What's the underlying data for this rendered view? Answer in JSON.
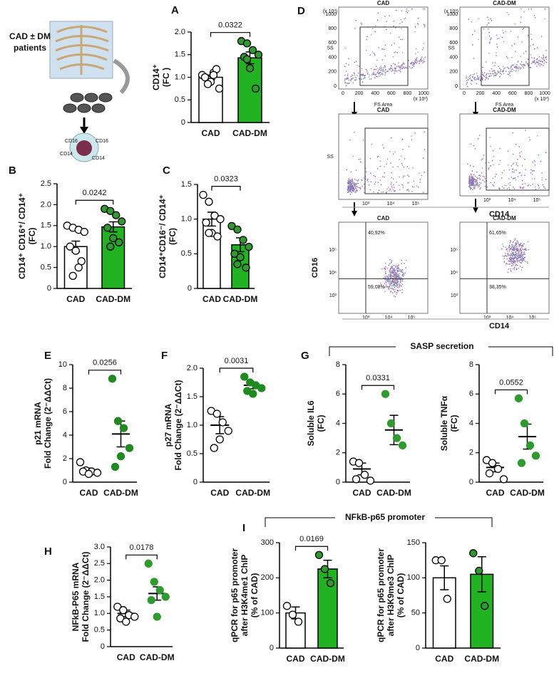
{
  "figure": {
    "cartoon": {
      "title": [
        "CAD ± DM",
        "patients"
      ],
      "markers": [
        "CD16",
        "CD16",
        "CD14",
        "CD14"
      ]
    },
    "flow": {
      "panel": "D",
      "titles": [
        "CAD",
        "CAD-DM",
        "CAD",
        "CAD-DM",
        "CAD",
        "CAD-DM"
      ],
      "ss_label": "SS",
      "fs_label": "FS Area",
      "unit": "(x 10³)",
      "lin_ticks": [
        "0",
        "200",
        "400",
        "600",
        "800",
        "1000"
      ],
      "log_ticks": [
        "10³",
        "10⁴",
        "10⁵"
      ],
      "cd14_label": "CD14",
      "cd16_label": "CD16",
      "percent": [
        "40,92%",
        "59,08%",
        "61,65%",
        "38,35%"
      ]
    },
    "headers": [
      "SASP secretion",
      "NFkB-p65 promoter"
    ]
  },
  "chart_data": [
    {
      "type": "bar",
      "panel": "A",
      "y_label": [
        "CD14⁺",
        "(FC )"
      ],
      "categories": [
        "CAD",
        "CAD-DM"
      ],
      "values": [
        1.0,
        1.43
      ],
      "errors": [
        0.05,
        0.13
      ],
      "points": [
        [
          1.05,
          0.95,
          1.1,
          0.75,
          1.0,
          0.9,
          1.18,
          0.85,
          1.05
        ],
        [
          1.8,
          1.75,
          1.6,
          1.5,
          1.45,
          1.2,
          0.75,
          1.4
        ]
      ],
      "colors": [
        "#ffffff",
        "#22b322"
      ],
      "point_colors": [
        "#ffffff",
        "#2e9b2e"
      ],
      "annotation": "0.0322",
      "ylim": [
        0,
        2
      ],
      "yticks": [
        0,
        0.5,
        {
          "value": 1,
          "label": "1.0"
        },
        1.5,
        {
          "value": 2,
          "label": "2.0"
        }
      ]
    },
    {
      "type": "bar",
      "panel": "B",
      "y_label": [
        "CD14⁺ CD16⁺/ CD14⁺",
        "(FC)"
      ],
      "categories": [
        "CAD",
        "CAD-DM"
      ],
      "values": [
        1.0,
        1.47
      ],
      "errors": [
        0.13,
        0.12
      ],
      "points": [
        [
          1.5,
          1.45,
          1.4,
          1.35,
          1.0,
          0.9,
          0.65,
          0.3,
          0.5
        ],
        [
          1.9,
          1.85,
          1.75,
          1.6,
          1.45,
          1.2,
          1.1,
          1.0
        ]
      ],
      "colors": [
        "#ffffff",
        "#22b322"
      ],
      "point_colors": [
        "#ffffff",
        "#2e9b2e"
      ],
      "annotation": "0.0242",
      "ylim": [
        0,
        2.5
      ],
      "yticks": [
        0,
        0.5,
        {
          "value": 1,
          "label": "1.0"
        },
        1.5,
        {
          "value": 2,
          "label": "2.0"
        },
        2.5
      ]
    },
    {
      "type": "bar",
      "panel": "C",
      "y_label": [
        "CD14⁺CD16⁻/ CD14⁺",
        "(FC)"
      ],
      "categories": [
        "CAD",
        "CAD-DM"
      ],
      "values": [
        1.0,
        0.63
      ],
      "errors": [
        0.1,
        0.1
      ],
      "points": [
        [
          1.35,
          1.25,
          1.05,
          1.0,
          0.95,
          0.8,
          0.75,
          0.8
        ],
        [
          0.9,
          0.85,
          0.7,
          0.6,
          0.5,
          0.45,
          0.3,
          0.35
        ]
      ],
      "colors": [
        "#ffffff",
        "#22b322"
      ],
      "point_colors": [
        "#ffffff",
        "#2e9b2e"
      ],
      "annotation": "0.0323",
      "ylim": [
        0,
        1.5
      ],
      "yticks": [
        0,
        0.5,
        {
          "value": 1,
          "label": "1.0"
        },
        1.5
      ]
    },
    {
      "type": "dotplot",
      "panel": "E",
      "y_label": [
        "p21 mRNA",
        "Fold Change (2⁻ΔΔCt)"
      ],
      "categories": [
        "CAD",
        "CAD-DM"
      ],
      "values": [
        1.0,
        4.1
      ],
      "errors": [
        0.2,
        1.1
      ],
      "points": [
        [
          1.7,
          1.0,
          0.9,
          0.8,
          0.9,
          0.7
        ],
        [
          8.8,
          5.2,
          4.6,
          2.9,
          1.3,
          2.2
        ]
      ],
      "colors": [
        "#000000",
        "#000000"
      ],
      "point_colors": [
        "#ffffff",
        "#1f8a1f"
      ],
      "annotation": "0.0256",
      "ylim": [
        0,
        10
      ],
      "yticks": [
        0,
        2,
        4,
        6,
        8,
        10
      ]
    },
    {
      "type": "dotplot",
      "panel": "F",
      "y_label": [
        "p27 mRNA",
        "Fold Change (2⁻ΔΔCt)"
      ],
      "categories": [
        "CAD",
        "CAD-DM"
      ],
      "values": [
        1.0,
        1.7
      ],
      "errors": [
        0.15,
        0.06
      ],
      "points": [
        [
          1.25,
          1.2,
          1.05,
          0.9,
          0.6,
          0.75
        ],
        [
          1.85,
          1.75,
          1.7,
          1.65,
          1.6,
          1.55
        ]
      ],
      "colors": [
        "#000000",
        "#000000"
      ],
      "point_colors": [
        "#ffffff",
        "#1f8a1f"
      ],
      "annotation": "0.0031",
      "ylim": [
        0,
        2
      ],
      "yticks": [
        0,
        0.5,
        {
          "value": 1,
          "label": "1.0"
        },
        1.5,
        {
          "value": 2,
          "label": "2.0"
        }
      ]
    },
    {
      "type": "dotplot",
      "panel": "G",
      "y_label": [
        "Soluble IL6",
        "(FC)"
      ],
      "categories": [
        "CAD",
        "CAD-DM"
      ],
      "values": [
        0.9,
        3.55
      ],
      "errors": [
        0.4,
        1.0
      ],
      "points": [
        [
          1.4,
          1.3,
          0.5,
          0.1,
          0.2
        ],
        [
          6.0,
          4.0,
          3.0,
          2.5
        ]
      ],
      "colors": [
        "#000000",
        "#000000"
      ],
      "point_colors": [
        "#ffffff",
        "#2e9b2e"
      ],
      "annotation": "0.0331",
      "ylim": [
        0,
        8
      ],
      "yticks": [
        0,
        2,
        4,
        6,
        8
      ]
    },
    {
      "type": "dotplot",
      "y_label": [
        "Soluble TNFα",
        "(FC)"
      ],
      "categories": [
        "CAD",
        "CAD-DM"
      ],
      "values": [
        1.0,
        3.1
      ],
      "errors": [
        0.3,
        0.85
      ],
      "points": [
        [
          1.5,
          1.3,
          0.9,
          0.2,
          0.6
        ],
        [
          5.7,
          4.0,
          2.5,
          1.8,
          1.3
        ]
      ],
      "colors": [
        "#000000",
        "#000000"
      ],
      "point_colors": [
        "#ffffff",
        "#2e9b2e"
      ],
      "annotation": "0.0552",
      "ylim": [
        0,
        8
      ],
      "yticks": [
        0,
        2,
        4,
        6,
        8
      ]
    },
    {
      "type": "dotplot",
      "panel": "H",
      "y_label": [
        "NFkB-P65 mRNA",
        "Fold Change (2⁻ΔΔCt)"
      ],
      "categories": [
        "CAD",
        "CAD-DM"
      ],
      "values": [
        1.0,
        1.6
      ],
      "errors": [
        0.1,
        0.2
      ],
      "points": [
        [
          1.2,
          1.1,
          0.95,
          0.9,
          0.85,
          0.75
        ],
        [
          2.5,
          1.95,
          1.7,
          1.5,
          1.4,
          0.9
        ]
      ],
      "colors": [
        "#000000",
        "#000000"
      ],
      "point_colors": [
        "#ffffff",
        "#2e9b2e"
      ],
      "annotation": "0.0178",
      "ylim": [
        0,
        3
      ],
      "yticks": [
        0,
        0.5,
        {
          "value": 1,
          "label": "1.0"
        },
        1.5,
        {
          "value": 2,
          "label": "2.0"
        },
        2.5,
        {
          "value": 3,
          "label": "3.0"
        }
      ]
    },
    {
      "type": "bar",
      "panel": "I",
      "y_label": [
        "qPCR for p65 promoter",
        "after H3K4me1 ChIP",
        "(% of CAD)"
      ],
      "categories": [
        "CAD",
        "CAD-DM"
      ],
      "values": [
        100,
        225
      ],
      "errors": [
        17,
        25
      ],
      "points": [
        [
          120,
          95,
          75
        ],
        [
          265,
          225,
          185
        ]
      ],
      "colors": [
        "#ffffff",
        "#22b322"
      ],
      "point_colors": [
        "#ffffff",
        "#2e9b2e"
      ],
      "annotation": "0.0169",
      "ylim": [
        0,
        300
      ],
      "yticks": [
        0,
        100,
        200,
        300
      ]
    },
    {
      "type": "bar",
      "y_label": [
        "qPCR for p65 promoter",
        "after H3K9me3 ChIP",
        "(% of CAD)"
      ],
      "categories": [
        "CAD",
        "CAD-DM"
      ],
      "values": [
        100,
        105
      ],
      "errors": [
        17,
        25
      ],
      "points": [
        [
          125,
          125,
          70
        ],
        [
          135,
          110,
          60
        ]
      ],
      "colors": [
        "#ffffff",
        "#22b322"
      ],
      "point_colors": [
        "#ffffff",
        "#2e9b2e"
      ],
      "ylim": [
        0,
        150
      ],
      "yticks": [
        0,
        50,
        100,
        150
      ]
    }
  ]
}
